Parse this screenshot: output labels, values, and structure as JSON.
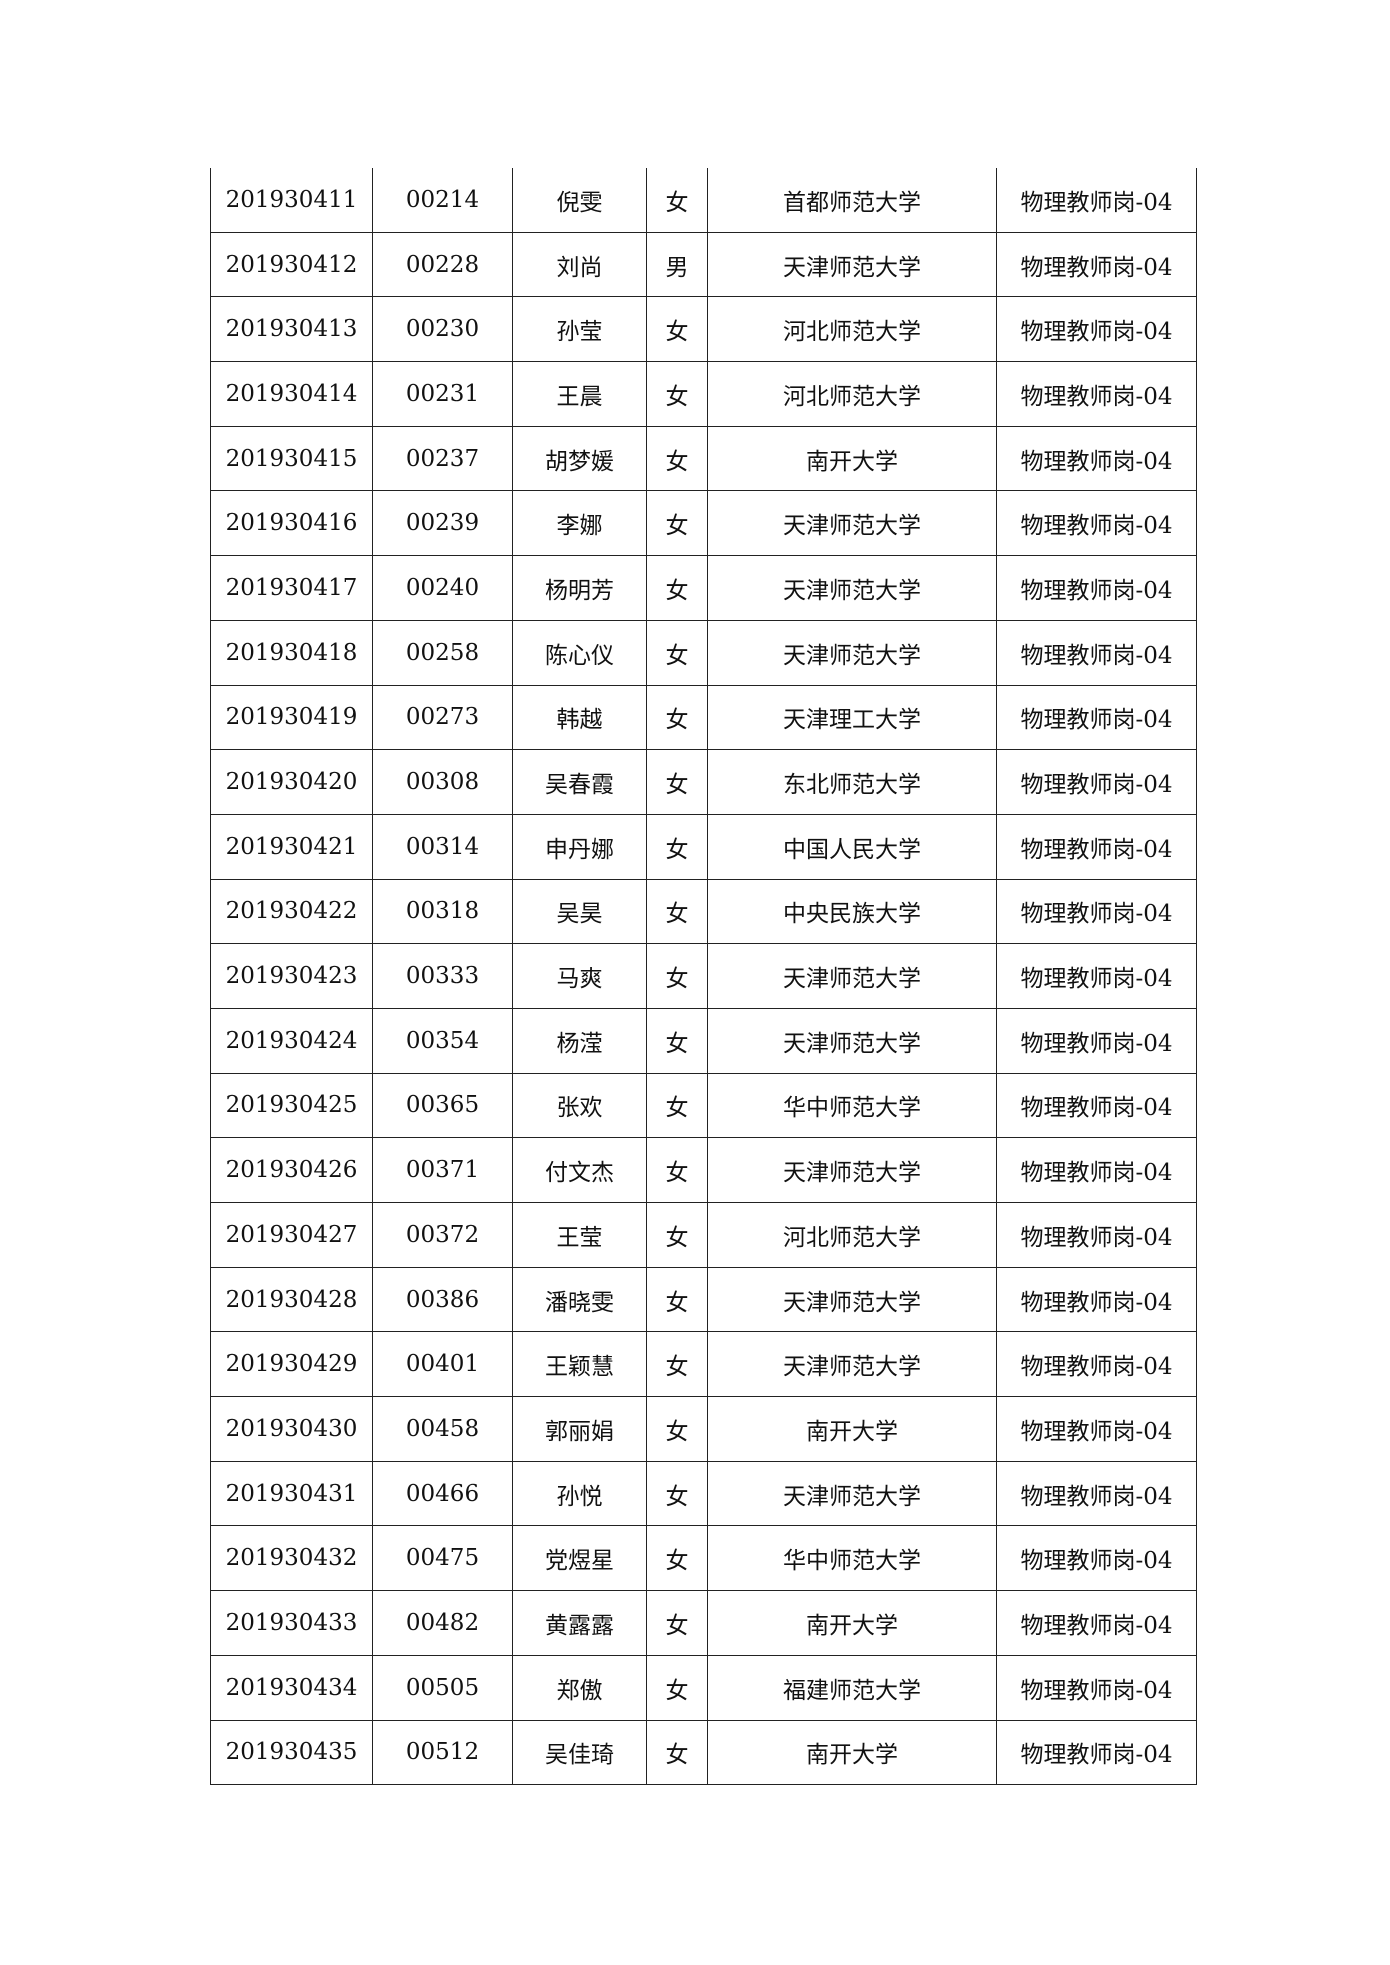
{
  "rows": [
    [
      "201930411",
      "00214",
      "倪雯",
      "女",
      "首都师范大学",
      "物理教师岗-04"
    ],
    [
      "201930412",
      "00228",
      "刘尚",
      "男",
      "天津师范大学",
      "物理教师岗-04"
    ],
    [
      "201930413",
      "00230",
      "孙莹",
      "女",
      "河北师范大学",
      "物理教师岗-04"
    ],
    [
      "201930414",
      "00231",
      "王晨",
      "女",
      "河北师范大学",
      "物理教师岗-04"
    ],
    [
      "201930415",
      "00237",
      "胡梦媛",
      "女",
      "南开大学",
      "物理教师岗-04"
    ],
    [
      "201930416",
      "00239",
      "李娜",
      "女",
      "天津师范大学",
      "物理教师岗-04"
    ],
    [
      "201930417",
      "00240",
      "杨明芳",
      "女",
      "天津师范大学",
      "物理教师岗-04"
    ],
    [
      "201930418",
      "00258",
      "陈心仪",
      "女",
      "天津师范大学",
      "物理教师岗-04"
    ],
    [
      "201930419",
      "00273",
      "韩越",
      "女",
      "天津理工大学",
      "物理教师岗-04"
    ],
    [
      "201930420",
      "00308",
      "吴春霞",
      "女",
      "东北师范大学",
      "物理教师岗-04"
    ],
    [
      "201930421",
      "00314",
      "申丹娜",
      "女",
      "中国人民大学",
      "物理教师岗-04"
    ],
    [
      "201930422",
      "00318",
      "吴昊",
      "女",
      "中央民族大学",
      "物理教师岗-04"
    ],
    [
      "201930423",
      "00333",
      "马爽",
      "女",
      "天津师范大学",
      "物理教师岗-04"
    ],
    [
      "201930424",
      "00354",
      "杨滢",
      "女",
      "天津师范大学",
      "物理教师岗-04"
    ],
    [
      "201930425",
      "00365",
      "张欢",
      "女",
      "华中师范大学",
      "物理教师岗-04"
    ],
    [
      "201930426",
      "00371",
      "付文杰",
      "女",
      "天津师范大学",
      "物理教师岗-04"
    ],
    [
      "201930427",
      "00372",
      "王莹",
      "女",
      "河北师范大学",
      "物理教师岗-04"
    ],
    [
      "201930428",
      "00386",
      "潘晓雯",
      "女",
      "天津师范大学",
      "物理教师岗-04"
    ],
    [
      "201930429",
      "00401",
      "王颖慧",
      "女",
      "天津师范大学",
      "物理教师岗-04"
    ],
    [
      "201930430",
      "00458",
      "郭丽娟",
      "女",
      "南开大学",
      "物理教师岗-04"
    ],
    [
      "201930431",
      "00466",
      "孙悦",
      "女",
      "天津师范大学",
      "物理教师岗-04"
    ],
    [
      "201930432",
      "00475",
      "党煜星",
      "女",
      "华中师范大学",
      "物理教师岗-04"
    ],
    [
      "201930433",
      "00482",
      "黄露露",
      "女",
      "南开大学",
      "物理教师岗-04"
    ],
    [
      "201930434",
      "00505",
      "郑傲",
      "女",
      "福建师范大学",
      "物理教师岗-04"
    ],
    [
      "201930435",
      "00512",
      "吴佳琦",
      "女",
      "南开大学",
      "物理教师岗-04"
    ]
  ]
}
